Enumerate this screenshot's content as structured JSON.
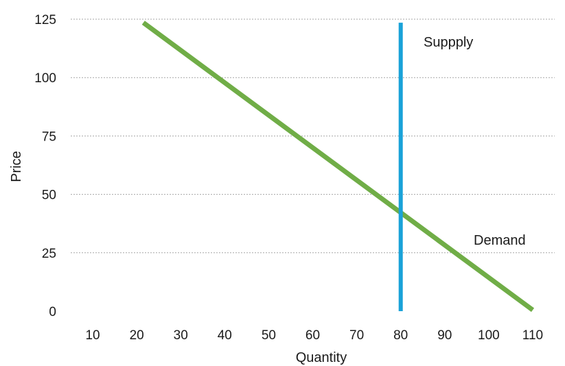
{
  "chart_data": {
    "type": "line",
    "title": "",
    "xlabel": "Quantity",
    "ylabel": "Price",
    "xlim": [
      5,
      115
    ],
    "ylim": [
      0,
      125
    ],
    "x_ticks": [
      10,
      20,
      30,
      40,
      50,
      60,
      70,
      80,
      90,
      100,
      110
    ],
    "y_ticks": [
      0,
      25,
      50,
      75,
      100,
      125
    ],
    "grid": "horizontal dashed",
    "legend": "none",
    "series": [
      {
        "name": "Demand",
        "color": "#70ad47",
        "x": [
          21.5,
          110
        ],
        "y": [
          123.5,
          0.5
        ]
      },
      {
        "name": "Suppply",
        "color": "#1aa2d8",
        "x": [
          80,
          80
        ],
        "y": [
          0,
          123.5
        ]
      }
    ]
  }
}
